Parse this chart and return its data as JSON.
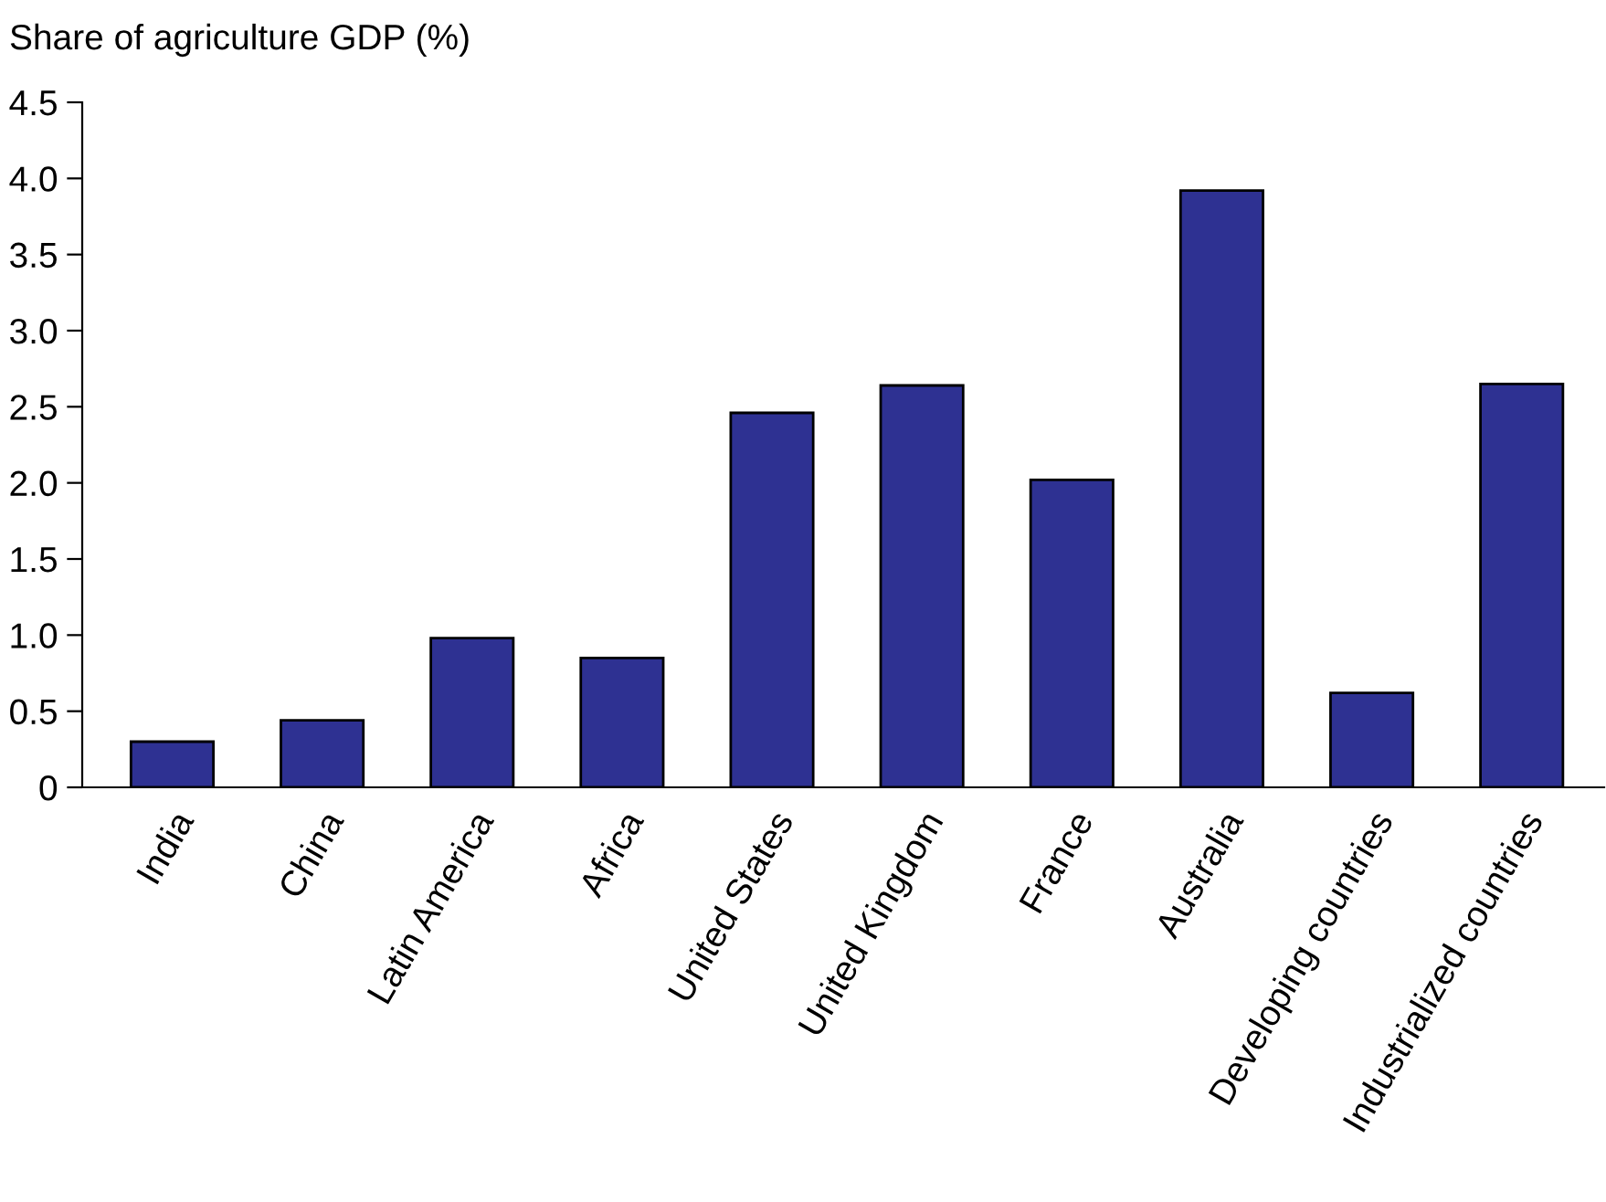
{
  "chart_data": {
    "type": "bar",
    "ylabel": "Share of agriculture GDP (%)",
    "categories": [
      "India",
      "China",
      "Latin America",
      "Africa",
      "United States",
      "United Kingdom",
      "France",
      "Australia",
      "Developing countries",
      "Industrialized countries"
    ],
    "values": [
      0.3,
      0.44,
      0.98,
      0.85,
      2.46,
      2.64,
      2.02,
      3.92,
      0.62,
      2.65
    ],
    "color": "#2e3192",
    "ylim": [
      0,
      4.5
    ],
    "yticks": [
      0,
      0.5,
      {
        "value": 1,
        "label": "1.0"
      },
      1.5,
      {
        "value": 2,
        "label": "2.0"
      },
      2.5,
      {
        "value": 3,
        "label": "3.0"
      },
      3.5,
      {
        "value": 4,
        "label": "4.0"
      },
      4.5
    ],
    "grid": false,
    "legend": false
  }
}
